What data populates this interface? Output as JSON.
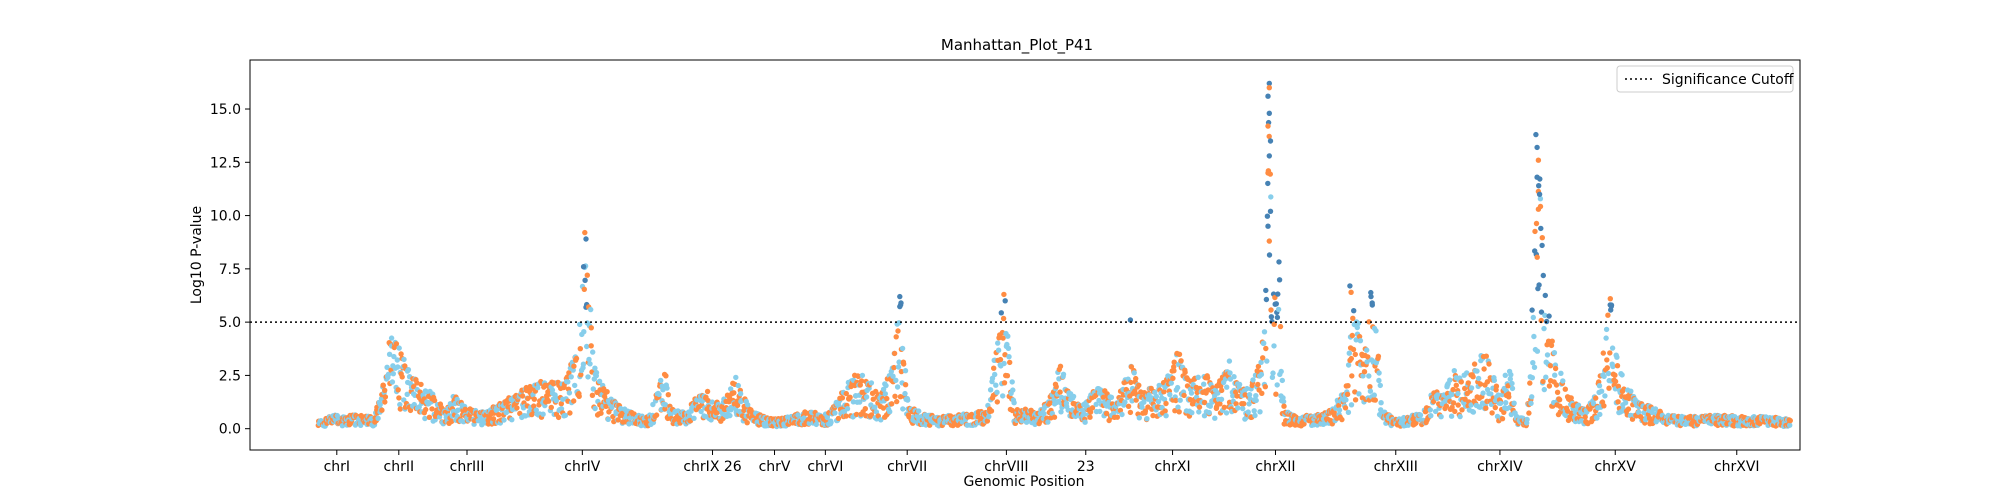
{
  "chart_data": {
    "type": "scatter",
    "title": "Manhattan_Plot_P41",
    "xlabel": "Genomic Position",
    "ylabel": "Log10 P-value",
    "ylim": [
      -1.0,
      17.3
    ],
    "yticks": [
      0.0,
      2.5,
      5.0,
      7.5,
      10.0,
      12.5,
      15.0
    ],
    "ytick_labels": [
      "0.0",
      "2.5",
      "5.0",
      "7.5",
      "10.0",
      "12.5",
      "15.0"
    ],
    "grid": false,
    "legend": {
      "placement": "top-right",
      "entries": [
        "Significance Cutoff"
      ]
    },
    "threshold": {
      "value": 5.0,
      "label": "Significance Cutoff",
      "style": "dotted",
      "color": "#000000"
    },
    "colors": {
      "above_threshold": "#4682b4",
      "series_a": "#87ceeb",
      "series_b": "#ff8c42"
    },
    "xlim": [
      0,
      1250
    ],
    "chromosome_ticks": [
      {
        "label": "chrI",
        "x": 70
      },
      {
        "label": "chrII",
        "x": 120
      },
      {
        "label": "chrIII",
        "x": 175
      },
      {
        "label": "chrIV",
        "x": 268
      },
      {
        "label": "chrIX 26",
        "x": 373
      },
      {
        "label": "chrV",
        "x": 423
      },
      {
        "label": "chrVI",
        "x": 464
      },
      {
        "label": "chrVII",
        "x": 530
      },
      {
        "label": "chrVIII",
        "x": 610
      },
      {
        "label": "23",
        "x": 674
      },
      {
        "label": "chrXI",
        "x": 744
      },
      {
        "label": "chrXII",
        "x": 827
      },
      {
        "label": "chrXIII",
        "x": 924
      },
      {
        "label": "chrXIV",
        "x": 1008
      },
      {
        "label": "chrXV",
        "x": 1101
      },
      {
        "label": "chrXVI",
        "x": 1199
      }
    ],
    "profile": [
      [
        55,
        0.3
      ],
      [
        65,
        0.6
      ],
      [
        75,
        0.5
      ],
      [
        90,
        0.6
      ],
      [
        100,
        0.5
      ],
      [
        108,
        2.0
      ],
      [
        112,
        3.8
      ],
      [
        118,
        4.0
      ],
      [
        125,
        3.0
      ],
      [
        130,
        2.2
      ],
      [
        140,
        1.8
      ],
      [
        150,
        1.3
      ],
      [
        158,
        0.7
      ],
      [
        165,
        1.5
      ],
      [
        172,
        1.0
      ],
      [
        180,
        0.8
      ],
      [
        190,
        0.7
      ],
      [
        200,
        1.0
      ],
      [
        210,
        1.3
      ],
      [
        220,
        1.7
      ],
      [
        232,
        2.0
      ],
      [
        245,
        1.9
      ],
      [
        255,
        2.2
      ],
      [
        262,
        3.0
      ],
      [
        266,
        5.2
      ],
      [
        270,
        7.0
      ],
      [
        274,
        6.0
      ],
      [
        277,
        3.2
      ],
      [
        280,
        2.3
      ],
      [
        290,
        1.4
      ],
      [
        300,
        0.9
      ],
      [
        312,
        0.6
      ],
      [
        322,
        0.5
      ],
      [
        334,
        2.6
      ],
      [
        340,
        0.8
      ],
      [
        352,
        0.7
      ],
      [
        360,
        1.3
      ],
      [
        368,
        1.6
      ],
      [
        380,
        1.0
      ],
      [
        392,
        2.2
      ],
      [
        402,
        0.9
      ],
      [
        414,
        0.5
      ],
      [
        425,
        0.4
      ],
      [
        440,
        0.6
      ],
      [
        452,
        0.8
      ],
      [
        462,
        0.5
      ],
      [
        472,
        1.0
      ],
      [
        483,
        2.0
      ],
      [
        492,
        2.4
      ],
      [
        500,
        2.0
      ],
      [
        508,
        1.5
      ],
      [
        516,
        2.5
      ],
      [
        520,
        3.8
      ],
      [
        524,
        5.6
      ],
      [
        527,
        3.2
      ],
      [
        532,
        0.9
      ],
      [
        545,
        0.6
      ],
      [
        558,
        0.5
      ],
      [
        570,
        0.6
      ],
      [
        582,
        0.6
      ],
      [
        594,
        0.8
      ],
      [
        600,
        2.8
      ],
      [
        604,
        4.0
      ],
      [
        608,
        5.6
      ],
      [
        612,
        3.4
      ],
      [
        617,
        0.8
      ],
      [
        625,
        0.8
      ],
      [
        636,
        0.7
      ],
      [
        648,
        1.5
      ],
      [
        653,
        3.0
      ],
      [
        658,
        2.0
      ],
      [
        670,
        0.9
      ],
      [
        680,
        1.6
      ],
      [
        688,
        2.0
      ],
      [
        698,
        1.0
      ],
      [
        706,
        2.2
      ],
      [
        711,
        2.8
      ],
      [
        718,
        1.6
      ],
      [
        728,
        1.8
      ],
      [
        738,
        2.0
      ],
      [
        748,
        3.3
      ],
      [
        758,
        2.0
      ],
      [
        768,
        2.6
      ],
      [
        778,
        1.6
      ],
      [
        790,
        2.8
      ],
      [
        800,
        1.7
      ],
      [
        808,
        2.0
      ],
      [
        815,
        2.8
      ],
      [
        818,
        4.8
      ],
      [
        820,
        8.0
      ],
      [
        821,
        12.5
      ],
      [
        822,
        15.5
      ],
      [
        823,
        11.0
      ],
      [
        825,
        6.5
      ],
      [
        827,
        5.5
      ],
      [
        829,
        9.0
      ],
      [
        831,
        5.0
      ],
      [
        834,
        0.8
      ],
      [
        845,
        0.5
      ],
      [
        858,
        0.6
      ],
      [
        872,
        0.8
      ],
      [
        883,
        1.6
      ],
      [
        887,
        3.5
      ],
      [
        890,
        5.5
      ],
      [
        894,
        4.8
      ],
      [
        898,
        2.8
      ],
      [
        902,
        4.5
      ],
      [
        904,
        5.8
      ],
      [
        907,
        4.5
      ],
      [
        910,
        3.2
      ],
      [
        914,
        0.7
      ],
      [
        925,
        0.4
      ],
      [
        935,
        0.5
      ],
      [
        945,
        0.7
      ],
      [
        955,
        1.6
      ],
      [
        962,
        1.5
      ],
      [
        970,
        2.4
      ],
      [
        978,
        2.2
      ],
      [
        985,
        2.6
      ],
      [
        992,
        3.2
      ],
      [
        997,
        3.6
      ],
      [
        1002,
        2.8
      ],
      [
        1008,
        1.2
      ],
      [
        1015,
        2.8
      ],
      [
        1022,
        0.5
      ],
      [
        1030,
        0.4
      ],
      [
        1034,
        5.0
      ],
      [
        1036,
        8.0
      ],
      [
        1038,
        12.5
      ],
      [
        1040,
        11.0
      ],
      [
        1042,
        8.5
      ],
      [
        1044,
        6.0
      ],
      [
        1046,
        5.5
      ],
      [
        1050,
        3.8
      ],
      [
        1055,
        2.6
      ],
      [
        1062,
        1.6
      ],
      [
        1070,
        1.0
      ],
      [
        1078,
        0.8
      ],
      [
        1085,
        1.5
      ],
      [
        1090,
        2.6
      ],
      [
        1094,
        4.8
      ],
      [
        1097,
        5.4
      ],
      [
        1100,
        4.0
      ],
      [
        1104,
        2.6
      ],
      [
        1110,
        1.8
      ],
      [
        1118,
        1.2
      ],
      [
        1130,
        0.9
      ],
      [
        1142,
        0.6
      ],
      [
        1155,
        0.5
      ],
      [
        1170,
        0.5
      ],
      [
        1185,
        0.6
      ],
      [
        1200,
        0.5
      ],
      [
        1215,
        0.5
      ],
      [
        1225,
        0.5
      ],
      [
        1242,
        0.4
      ]
    ]
  }
}
